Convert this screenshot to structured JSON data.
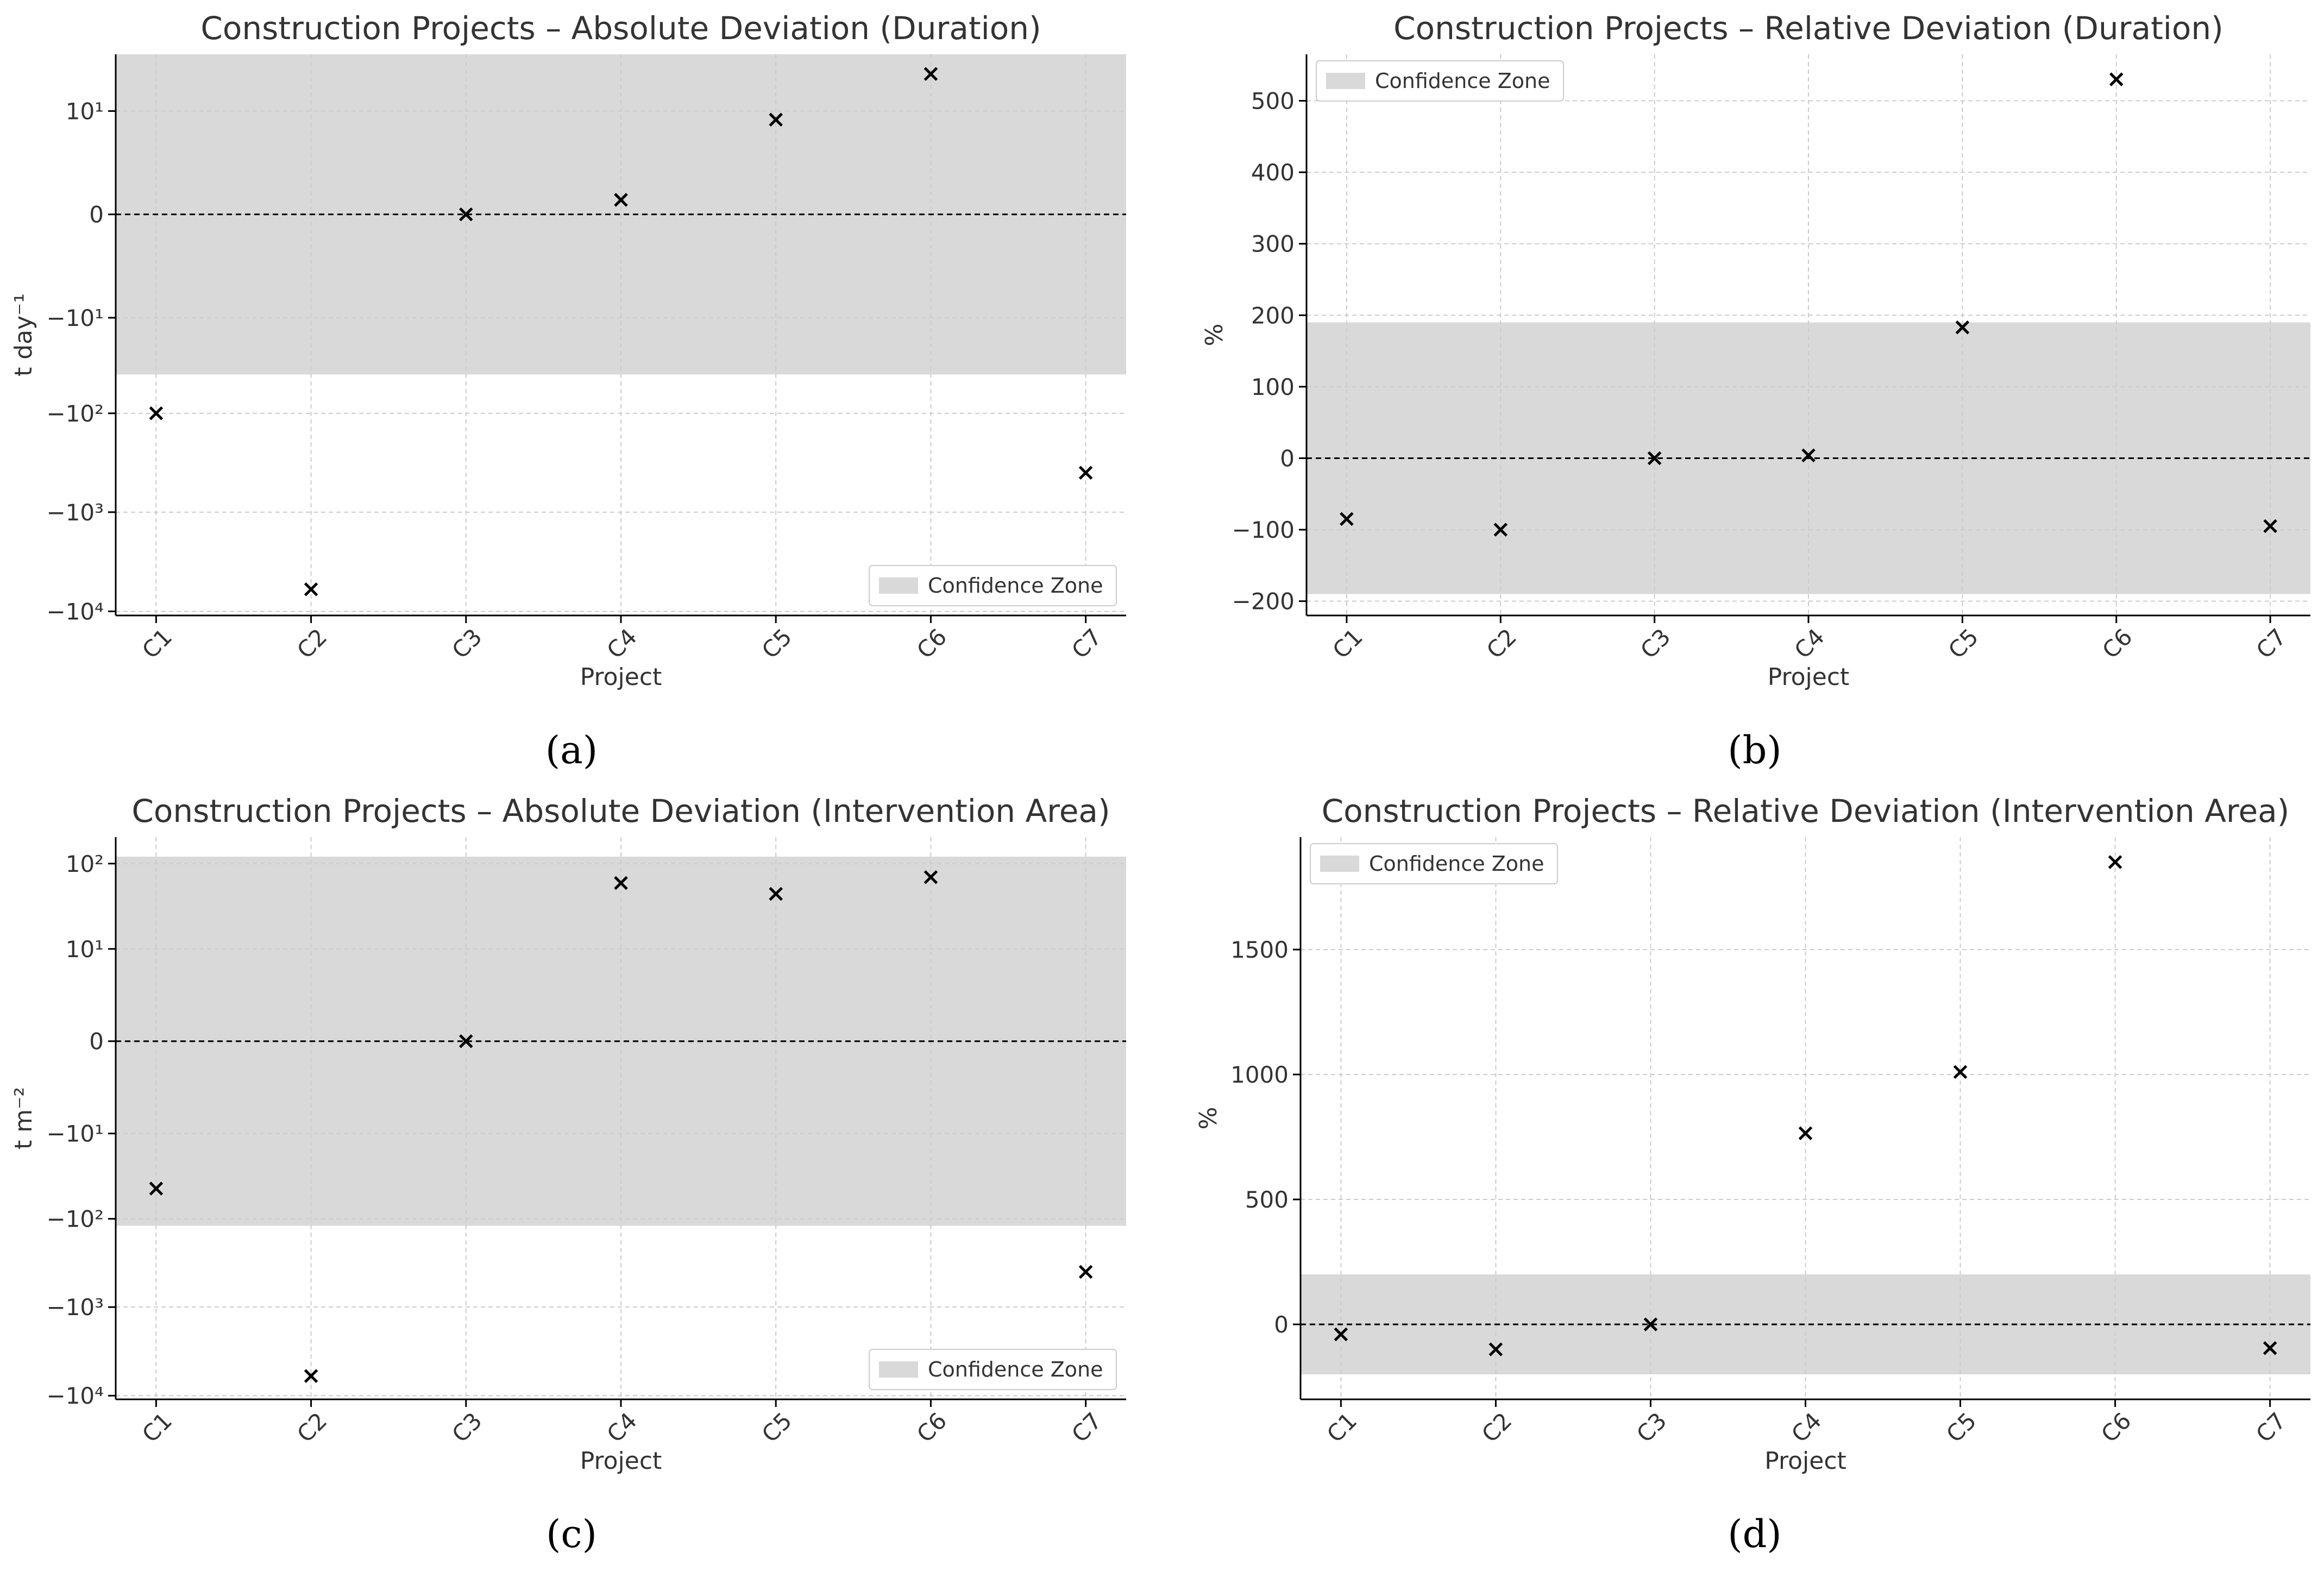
{
  "figure": {
    "panel_labels": [
      "(a)",
      "(b)",
      "(c)",
      "(d)"
    ]
  },
  "colors": {
    "zone": "#d9d9d9",
    "marker": "#000000",
    "grid": "#cccccc",
    "text": "#333333"
  },
  "chart_data": [
    {
      "type": "scatter",
      "scale": "symlog",
      "title": "Construction Projects – Absolute Deviation (Duration)",
      "xlabel": "Project",
      "ylabel": "t day⁻¹",
      "categories": [
        "C1",
        "C2",
        "C3",
        "C4",
        "C5",
        "C6",
        "C7"
      ],
      "values": [
        -100,
        -6000,
        0,
        0.4,
        8,
        25,
        -400
      ],
      "ylim": [
        -11000,
        40
      ],
      "yticks": [
        {
          "value": 10,
          "label": "10¹"
        },
        {
          "value": 0,
          "label": "0"
        },
        {
          "value": -10,
          "label": "−10¹"
        },
        {
          "value": -100,
          "label": "−10²"
        },
        {
          "value": -1000,
          "label": "−10³"
        },
        {
          "value": -10000,
          "label": "−10⁴"
        }
      ],
      "confidence_zone": [
        -40,
        40
      ],
      "zero_line": true,
      "legend": {
        "label": "Confidence Zone",
        "position": "lower-right"
      }
    },
    {
      "type": "scatter",
      "scale": "linear",
      "title": "Construction Projects – Relative Deviation (Duration)",
      "xlabel": "Project",
      "ylabel": "%",
      "categories": [
        "C1",
        "C2",
        "C3",
        "C4",
        "C5",
        "C6",
        "C7"
      ],
      "values": [
        -85,
        -100,
        0,
        4,
        183,
        530,
        -95
      ],
      "ylim": [
        -220,
        565
      ],
      "yticks": [
        {
          "value": 500,
          "label": "500"
        },
        {
          "value": 400,
          "label": "400"
        },
        {
          "value": 300,
          "label": "300"
        },
        {
          "value": 200,
          "label": "200"
        },
        {
          "value": 100,
          "label": "100"
        },
        {
          "value": 0,
          "label": "0"
        },
        {
          "value": -100,
          "label": "−100"
        },
        {
          "value": -200,
          "label": "−200"
        }
      ],
      "confidence_zone": [
        -190,
        190
      ],
      "zero_line": true,
      "legend": {
        "label": "Confidence Zone",
        "position": "upper-left"
      }
    },
    {
      "type": "scatter",
      "scale": "symlog",
      "title": "Construction Projects – Absolute Deviation (Intervention Area)",
      "xlabel": "Project",
      "ylabel": "t m⁻²",
      "categories": [
        "C1",
        "C2",
        "C3",
        "C4",
        "C5",
        "C6",
        "C7"
      ],
      "values": [
        -45,
        -6000,
        0,
        60,
        45,
        70,
        -400
      ],
      "ylim": [
        -11000,
        200
      ],
      "yticks": [
        {
          "value": 100,
          "label": "10²"
        },
        {
          "value": 10,
          "label": "10¹"
        },
        {
          "value": 0,
          "label": "0"
        },
        {
          "value": -10,
          "label": "−10¹"
        },
        {
          "value": -100,
          "label": "−10²"
        },
        {
          "value": -1000,
          "label": "−10³"
        },
        {
          "value": -10000,
          "label": "−10⁴"
        }
      ],
      "confidence_zone": [
        -120,
        120
      ],
      "zero_line": true,
      "legend": {
        "label": "Confidence Zone",
        "position": "lower-right"
      }
    },
    {
      "type": "scatter",
      "scale": "linear",
      "title": "Construction Projects – Relative Deviation (Intervention Area)",
      "xlabel": "Project",
      "ylabel": "%",
      "categories": [
        "C1",
        "C2",
        "C3",
        "C4",
        "C5",
        "C6",
        "C7"
      ],
      "values": [
        -40,
        -100,
        0,
        765,
        1010,
        1850,
        -95
      ],
      "ylim": [
        -300,
        1950
      ],
      "yticks": [
        {
          "value": 1500,
          "label": "1500"
        },
        {
          "value": 1000,
          "label": "1000"
        },
        {
          "value": 500,
          "label": "500"
        },
        {
          "value": 0,
          "label": "0"
        }
      ],
      "confidence_zone": [
        -200,
        200
      ],
      "zero_line": true,
      "legend": {
        "label": "Confidence Zone",
        "position": "upper-left"
      }
    }
  ]
}
